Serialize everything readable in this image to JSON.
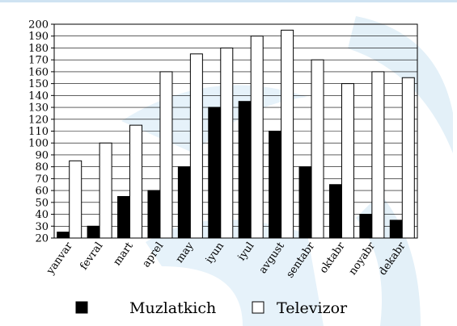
{
  "chart_data": {
    "type": "bar",
    "title": "",
    "xlabel": "",
    "ylabel": "",
    "categories": [
      "yanvar",
      "fevral",
      "mart",
      "aprel",
      "may",
      "iyun",
      "iyul",
      "avgust",
      "sentabr",
      "oktabr",
      "noyabr",
      "dekabr"
    ],
    "series": [
      {
        "name": "Muzlatkich",
        "color": "#000000",
        "values": [
          25,
          30,
          55,
          60,
          80,
          130,
          135,
          110,
          80,
          65,
          40,
          35
        ]
      },
      {
        "name": "Televizor",
        "color": "#ffffff",
        "values": [
          85,
          100,
          115,
          160,
          175,
          180,
          190,
          195,
          170,
          150,
          160,
          155
        ]
      }
    ],
    "ylim": [
      20,
      200
    ],
    "yticks": [
      20,
      30,
      40,
      50,
      60,
      70,
      80,
      90,
      100,
      110,
      120,
      130,
      140,
      150,
      160,
      170,
      180,
      190,
      200
    ],
    "grid": true,
    "legend_position": "bottom"
  }
}
